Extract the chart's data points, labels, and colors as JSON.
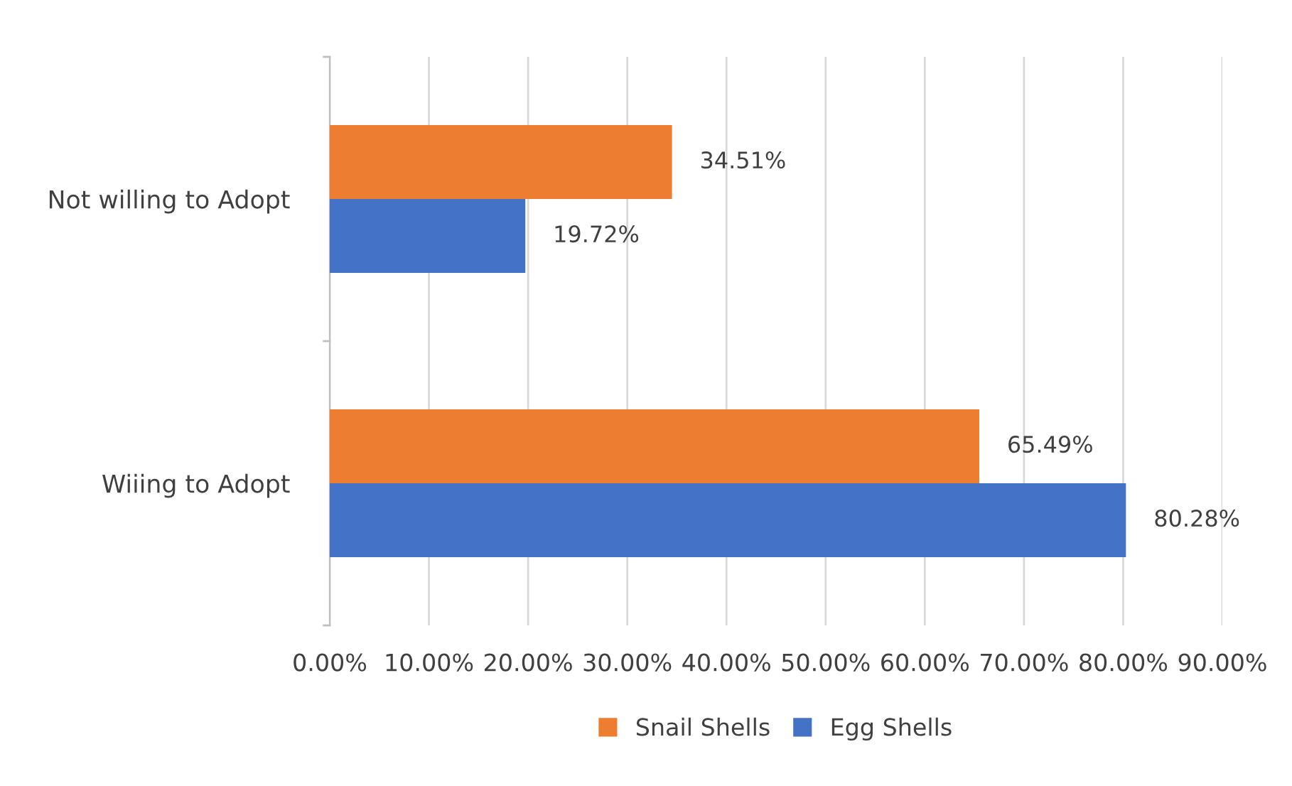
{
  "chart_data": {
    "type": "bar",
    "orientation": "horizontal",
    "categories": [
      "Not willing to Adopt",
      "Wiiing to Adopt"
    ],
    "series": [
      {
        "name": "Snail Shells",
        "color": "#ed7d31",
        "values": [
          34.51,
          65.49
        ],
        "value_labels": [
          "34.51%",
          "65.49%"
        ]
      },
      {
        "name": "Egg Shells",
        "color": "#4472c4",
        "values": [
          19.72,
          80.28
        ],
        "value_labels": [
          "19.72%",
          "80.28%"
        ]
      }
    ],
    "xlim": [
      0,
      90
    ],
    "xticks": [
      {
        "value": 0,
        "label": "0.00%"
      },
      {
        "value": 10,
        "label": "10.00%"
      },
      {
        "value": 20,
        "label": "20.00%"
      },
      {
        "value": 30,
        "label": "30.00%"
      },
      {
        "value": 40,
        "label": "40.00%"
      },
      {
        "value": 50,
        "label": "50.00%"
      },
      {
        "value": 60,
        "label": "60.00%"
      },
      {
        "value": 70,
        "label": "70.00%"
      },
      {
        "value": 80,
        "label": "80.00%"
      },
      {
        "value": 90,
        "label": "90.00%"
      }
    ],
    "grid": "x",
    "legend": "bottom"
  }
}
